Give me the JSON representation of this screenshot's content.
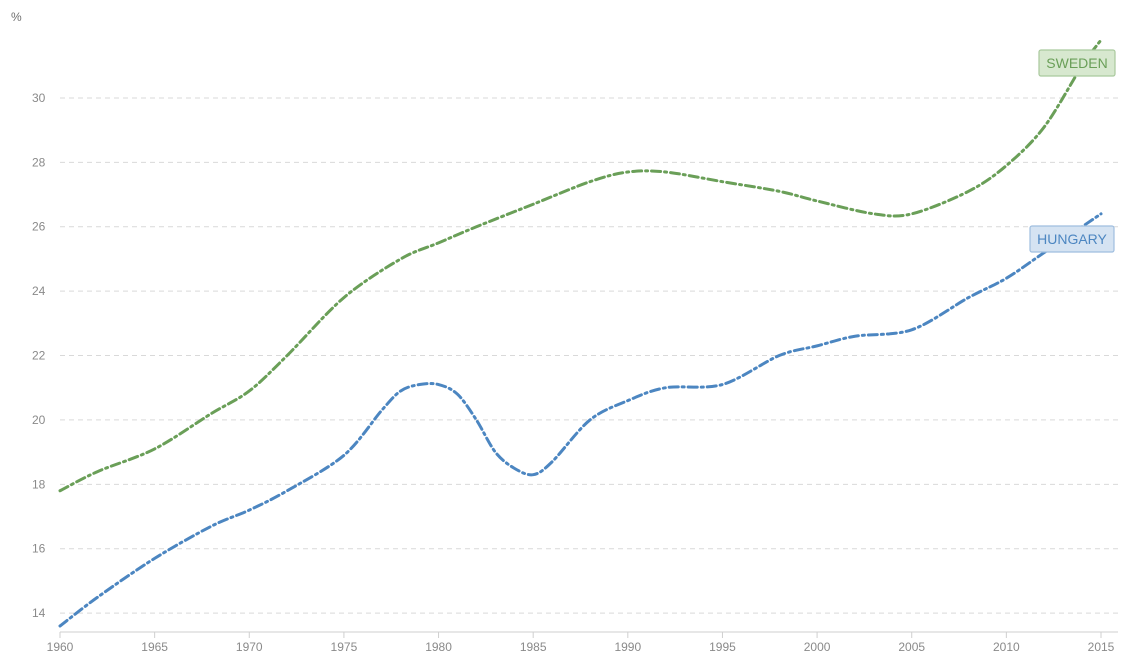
{
  "chart_data": {
    "type": "line",
    "ylabel": "%",
    "xlim": [
      1960,
      2015
    ],
    "ylim": [
      13.6,
      31.8
    ],
    "y_ticks": [
      14,
      16,
      18,
      20,
      22,
      24,
      26,
      28,
      30
    ],
    "x_ticks": [
      1960,
      1965,
      1970,
      1975,
      1980,
      1985,
      1990,
      1995,
      2000,
      2005,
      2010,
      2015
    ],
    "grid": true,
    "legend": "inline-labels-at-line-ends",
    "series": [
      {
        "name": "SWEDEN",
        "color": "#6a9f58",
        "label_bg": "#d7e8cf",
        "label_border": "#a9c99d",
        "x": [
          1960,
          1962,
          1965,
          1968,
          1970,
          1972,
          1975,
          1978,
          1980,
          1982,
          1985,
          1988,
          1990,
          1992,
          1995,
          1998,
          2000,
          2003,
          2005,
          2008,
          2010,
          2012,
          2014,
          2015
        ],
        "y": [
          17.8,
          18.4,
          19.1,
          20.2,
          20.9,
          22.0,
          23.8,
          25.0,
          25.5,
          26.0,
          26.7,
          27.4,
          27.7,
          27.7,
          27.4,
          27.1,
          26.8,
          26.4,
          26.4,
          27.1,
          27.9,
          29.1,
          31.0,
          31.8
        ]
      },
      {
        "name": "HUNGARY",
        "color": "#4c86c1",
        "label_bg": "#d5e3f2",
        "label_border": "#9fbedf",
        "x": [
          1960,
          1962,
          1965,
          1968,
          1970,
          1972,
          1975,
          1977,
          1978,
          1979,
          1980,
          1981,
          1982,
          1983,
          1984,
          1985,
          1986,
          1988,
          1990,
          1992,
          1995,
          1998,
          2000,
          2002,
          2005,
          2008,
          2010,
          2012,
          2015
        ],
        "y": [
          13.6,
          14.5,
          15.7,
          16.7,
          17.2,
          17.8,
          18.9,
          20.3,
          20.9,
          21.1,
          21.1,
          20.8,
          20.0,
          19.0,
          18.5,
          18.3,
          18.7,
          20.0,
          20.6,
          21.0,
          21.1,
          22.0,
          22.3,
          22.6,
          22.8,
          23.8,
          24.4,
          25.2,
          26.4
        ]
      }
    ]
  }
}
